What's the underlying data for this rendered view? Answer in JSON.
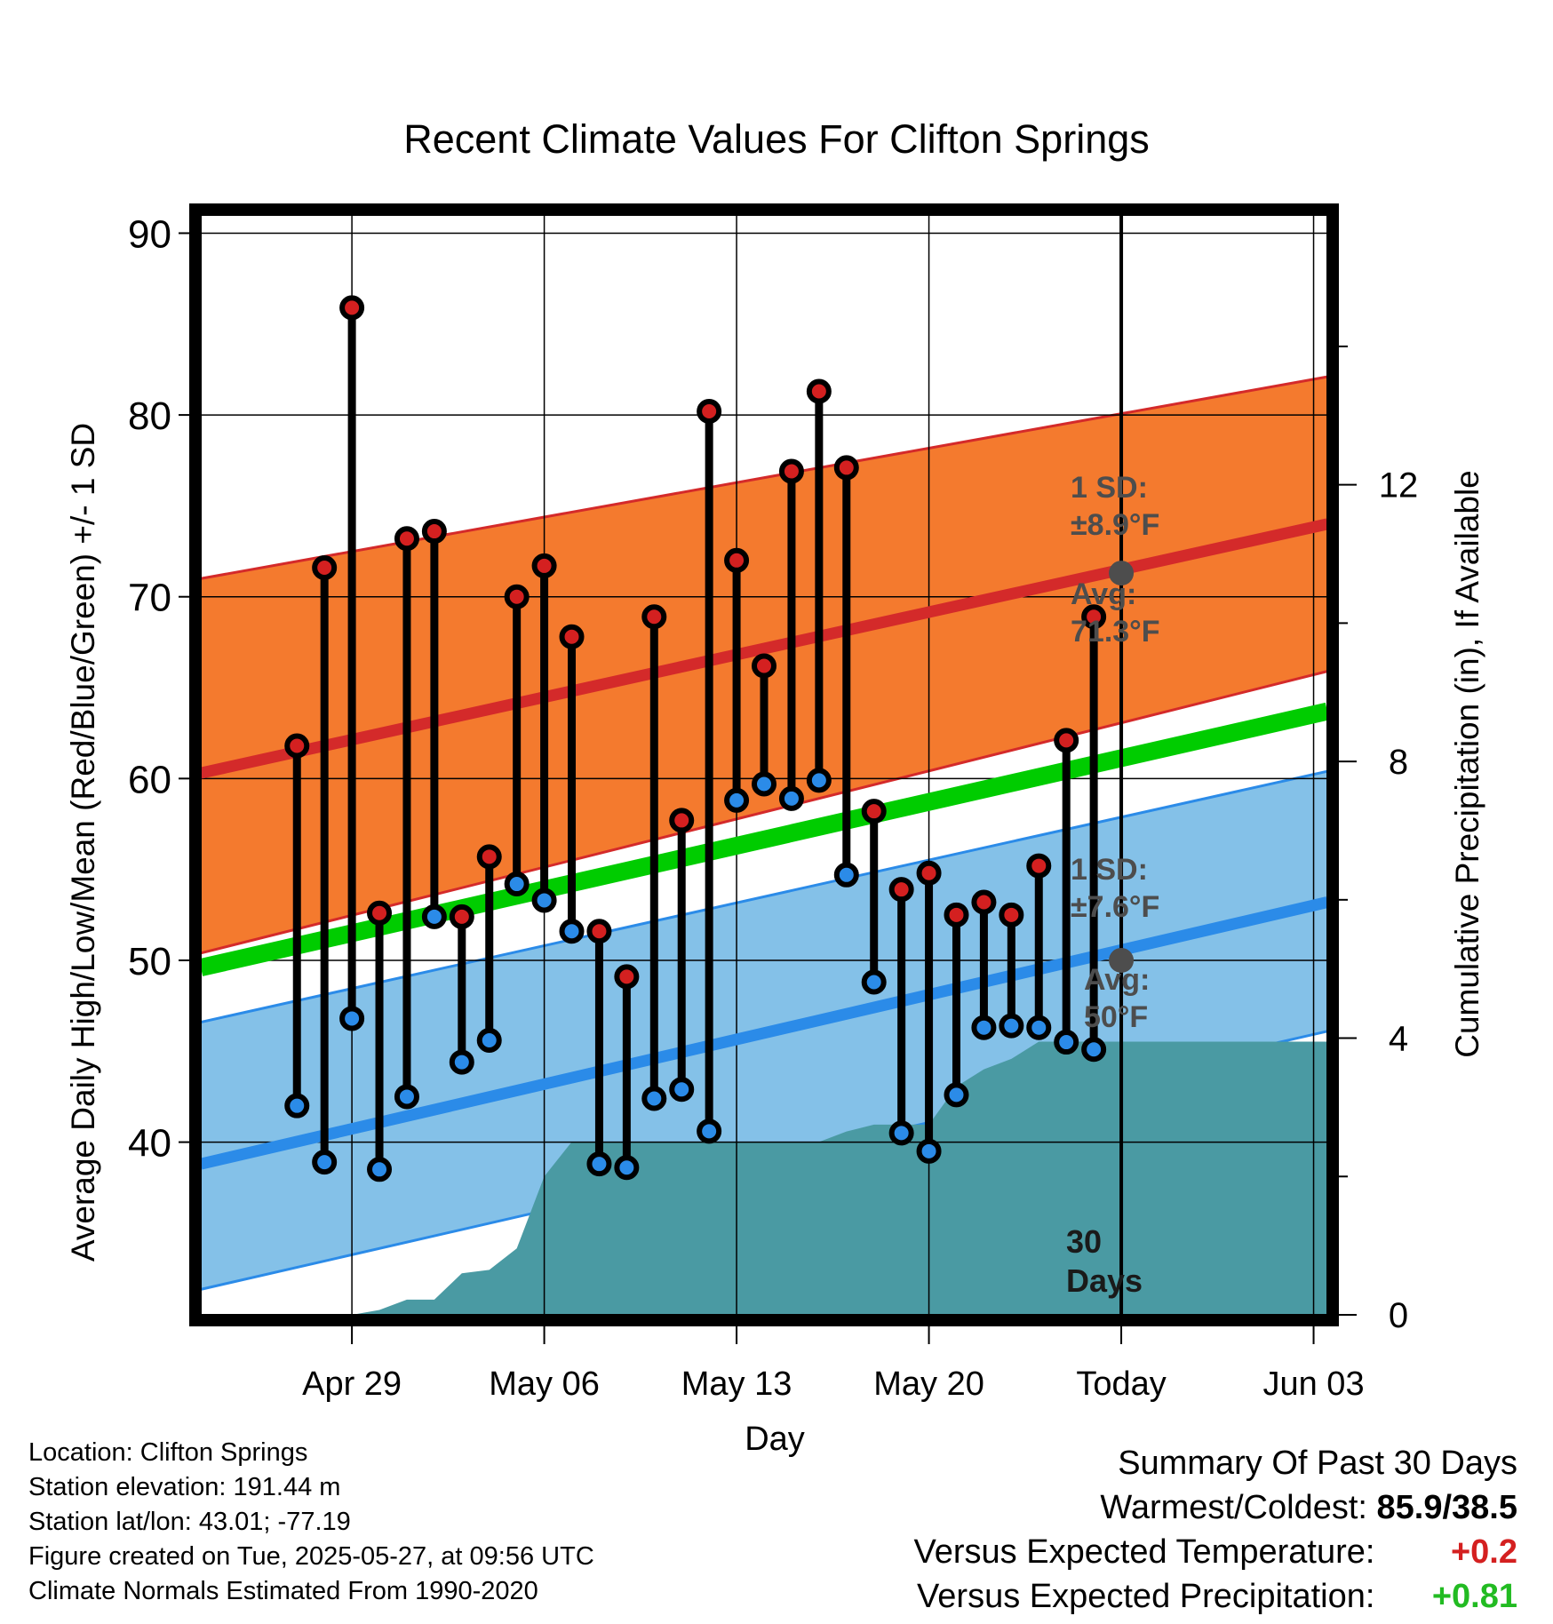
{
  "title": "Recent Climate Values For Clifton Springs",
  "colors": {
    "high_band": "#f47a2e",
    "high_band_edge": "#d42a2a",
    "high_mean_line": "#d42a2a",
    "low_band": "#84c1e8",
    "low_band_edge": "#2b8be8",
    "low_mean_line": "#2b8be8",
    "mean_line": "#00cc00",
    "precip_fill": "#4a9aa3",
    "high_point": "#d42020",
    "low_point": "#2b8be8",
    "today_marker": "#4d4d4d"
  },
  "annotations": {
    "high_sd_line1": "1 SD:",
    "high_sd_line2": "±8.9°F",
    "high_avg_line1": "Avg:",
    "high_avg_line2": "71.3°F",
    "low_sd_line1": "1 SD:",
    "low_sd_line2": "±7.6°F",
    "low_avg_line1": "Avg:",
    "low_avg_line2": "50°F",
    "window_line1": "30",
    "window_line2": "Days"
  },
  "footer": {
    "location": "Location: Clifton Springs",
    "elevation": "Station elevation: 191.44 m",
    "latlon": "Station lat/lon: 43.01; -77.19",
    "created": "Figure created on Tue, 2025-05-27, at 09:56 UTC",
    "normals": "Climate Normals Estimated From 1990-2020"
  },
  "summary": {
    "heading": "Summary Of Past 30 Days",
    "warmest_label": "Warmest/Coldest:",
    "warmest_value": "85.9/38.5",
    "temp_label": "Versus Expected Temperature:",
    "temp_value": "+0.2",
    "precip_label": "Versus Expected Precipitation:",
    "precip_value": "+0.81"
  },
  "chart_data": {
    "type": "line",
    "xlabel": "Day",
    "ylabel": "Average Daily High/Low/Mean (Red/Blue/Green) +/- 1 SD",
    "y2label": "Cumulative Precipitation (in), If Available",
    "x_range_days": [
      -33.5,
      7.5
    ],
    "xticks": [
      {
        "day": -28,
        "label": "Apr 29"
      },
      {
        "day": -21,
        "label": "May 06"
      },
      {
        "day": -14,
        "label": "May 13"
      },
      {
        "day": -7,
        "label": "May 20"
      },
      {
        "day": 0,
        "label": "Today"
      },
      {
        "day": 7,
        "label": "Jun 03"
      }
    ],
    "ylim": [
      30.5,
      91
    ],
    "yticks": [
      40,
      50,
      60,
      70,
      80,
      90
    ],
    "y2lim": [
      0,
      15.9
    ],
    "y2ticks": [
      0,
      4,
      8,
      12
    ],
    "normals": {
      "days": [
        -33.5,
        7.5
      ],
      "high_mean": [
        60.3,
        74.0
      ],
      "high_upper": [
        71.0,
        82.1
      ],
      "high_lower": [
        50.4,
        65.9
      ],
      "low_mean": [
        38.8,
        53.2
      ],
      "low_upper": [
        46.6,
        60.4
      ],
      "low_lower": [
        31.9,
        46.1
      ],
      "mean": [
        49.6,
        63.7
      ]
    },
    "today_markers": {
      "high": 71.3,
      "low": 50
    },
    "daily": {
      "days": [
        -30,
        -29,
        -28,
        -27,
        -26,
        -25,
        -24,
        -23,
        -22,
        -21,
        -20,
        -19,
        -18,
        -17,
        -16,
        -15,
        -14,
        -13,
        -12,
        -11,
        -10,
        -9,
        -8,
        -7,
        -6,
        -5,
        -4,
        -3,
        -2,
        -1
      ],
      "high": [
        61.8,
        71.6,
        85.9,
        52.6,
        73.2,
        73.6,
        52.4,
        55.7,
        70.0,
        71.7,
        67.8,
        51.6,
        49.1,
        68.9,
        57.7,
        80.2,
        72.0,
        66.2,
        76.9,
        81.3,
        77.1,
        58.2,
        53.9,
        54.8,
        52.5,
        53.2,
        52.5,
        55.2,
        62.1,
        68.9
      ],
      "low": [
        42.0,
        38.9,
        46.8,
        38.5,
        42.5,
        52.4,
        44.4,
        45.6,
        54.2,
        53.3,
        51.6,
        38.8,
        38.6,
        42.4,
        42.9,
        40.6,
        58.8,
        59.7,
        58.9,
        59.9,
        54.7,
        48.8,
        40.5,
        39.5,
        42.6,
        46.3,
        46.4,
        46.3,
        45.5,
        45.1
      ]
    },
    "precip": {
      "days": [
        -28,
        -27,
        -26,
        -25,
        -24,
        -23,
        -22,
        -21,
        -20,
        -19,
        -18,
        -17,
        -16,
        -15,
        -14,
        -13,
        -12,
        -11,
        -10,
        -9,
        -8,
        -7,
        -6,
        -5,
        -4,
        -3,
        -2,
        -1,
        0,
        7.5
      ],
      "cumulative": [
        0.0,
        0.07,
        0.22,
        0.22,
        0.6,
        0.65,
        0.96,
        2.0,
        2.5,
        2.5,
        2.5,
        2.5,
        2.5,
        2.5,
        2.5,
        2.5,
        2.5,
        2.5,
        2.65,
        2.75,
        2.75,
        2.75,
        3.3,
        3.55,
        3.7,
        3.95,
        3.95,
        3.95,
        3.95,
        3.95
      ]
    }
  }
}
